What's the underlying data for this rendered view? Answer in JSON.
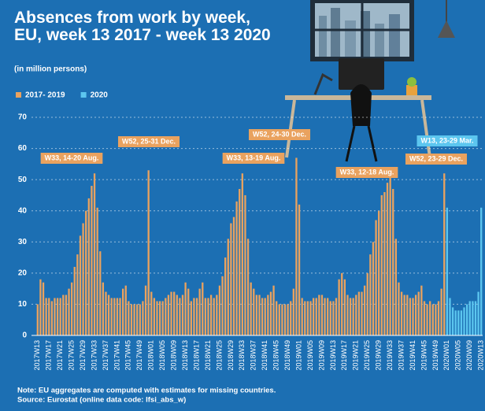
{
  "chart_data": {
    "type": "bar",
    "title": "Absences from work by week, EU, week 13 2017 - week 13 2020",
    "subtitle": "(in million persons)",
    "categories": [
      "2017W13",
      null,
      null,
      null,
      "2017W17",
      null,
      null,
      null,
      "2017W21",
      null,
      null,
      null,
      "2017W25",
      null,
      null,
      null,
      "2017W29",
      null,
      null,
      null,
      "2017W33",
      null,
      null,
      null,
      "2017W37",
      null,
      null,
      null,
      "2017W41",
      null,
      null,
      null,
      "2017W45",
      null,
      null,
      null,
      "2017W49",
      null,
      null,
      null,
      "2018W01",
      null,
      null,
      null,
      "2018W05",
      null,
      null,
      null,
      "2018W09",
      null,
      null,
      null,
      "2018W13",
      null,
      null,
      null,
      "2018W17",
      null,
      null,
      null,
      "2018W21",
      null,
      null,
      null,
      "2018W25",
      null,
      null,
      null,
      "2018W29",
      null,
      null,
      null,
      "2018W33",
      null,
      null,
      null,
      "2018W37",
      null,
      null,
      null,
      "2018W41",
      null,
      null,
      null,
      "2018W45",
      null,
      null,
      null,
      "2018W49",
      null,
      null,
      null,
      "2019W01",
      null,
      null,
      null,
      "2019W05",
      null,
      null,
      null,
      "2019W09",
      null,
      null,
      null,
      "2019W13",
      null,
      null,
      null,
      "2019W17",
      null,
      null,
      null,
      "2019W21",
      null,
      null,
      null,
      "2019W25",
      null,
      null,
      null,
      "2019W29",
      null,
      null,
      null,
      "2019W33",
      null,
      null,
      null,
      "2019W37",
      null,
      null,
      null,
      "2019W41",
      null,
      null,
      null,
      "2019W45",
      null,
      null,
      null,
      "2019W49",
      null,
      null,
      null,
      "2020W01",
      null,
      null,
      null,
      "2020W05",
      null,
      null,
      null,
      "2020W09",
      null,
      null,
      null,
      "2020W13"
    ],
    "series": [
      {
        "name": "2017- 2019",
        "color": "#e9a25f",
        "values": [
          10,
          18,
          17,
          12,
          12,
          11,
          12,
          12,
          12,
          13,
          13,
          15,
          17,
          22,
          26,
          32,
          36,
          40,
          44,
          48,
          52,
          41,
          27,
          17,
          14,
          13,
          12,
          12,
          12,
          12,
          15,
          16,
          11,
          10,
          10,
          10,
          10,
          11,
          16,
          53,
          14,
          12,
          11,
          11,
          11,
          12,
          13,
          14,
          14,
          13,
          12,
          13,
          17,
          15,
          11,
          12,
          12,
          15,
          17,
          12,
          12,
          13,
          12,
          13,
          16,
          19,
          25,
          31,
          36,
          38,
          43,
          47,
          52,
          45,
          31,
          17,
          15,
          13,
          13,
          12,
          12,
          13,
          14,
          16,
          11,
          10,
          10,
          10,
          10,
          11,
          15,
          57,
          42,
          12,
          11,
          11,
          11,
          12,
          12,
          13,
          13,
          12,
          12,
          11,
          11,
          12,
          18,
          20,
          18,
          13,
          12,
          12,
          13,
          14,
          14,
          16,
          20,
          26,
          30,
          37,
          40,
          45,
          46,
          49,
          53,
          47,
          31,
          17,
          14,
          13,
          13,
          12,
          12,
          13,
          14,
          16,
          11,
          10,
          11,
          10,
          10,
          11,
          15,
          52,
          null,
          null,
          null,
          null,
          null,
          null,
          null,
          null,
          null,
          null,
          null,
          null,
          null
        ]
      },
      {
        "name": "2020",
        "color": "#5cc6ef",
        "values": [
          null,
          null,
          null,
          null,
          null,
          null,
          null,
          null,
          null,
          null,
          null,
          null,
          null,
          null,
          null,
          null,
          null,
          null,
          null,
          null,
          null,
          null,
          null,
          null,
          null,
          null,
          null,
          null,
          null,
          null,
          null,
          null,
          null,
          null,
          null,
          null,
          null,
          null,
          null,
          null,
          null,
          null,
          null,
          null,
          null,
          null,
          null,
          null,
          null,
          null,
          null,
          null,
          null,
          null,
          null,
          null,
          null,
          null,
          null,
          null,
          null,
          null,
          null,
          null,
          null,
          null,
          null,
          null,
          null,
          null,
          null,
          null,
          null,
          null,
          null,
          null,
          null,
          null,
          null,
          null,
          null,
          null,
          null,
          null,
          null,
          null,
          null,
          null,
          null,
          null,
          null,
          null,
          null,
          null,
          null,
          null,
          null,
          null,
          null,
          null,
          null,
          null,
          null,
          null,
          null,
          null,
          null,
          null,
          null,
          null,
          null,
          null,
          null,
          null,
          null,
          null,
          null,
          null,
          null,
          null,
          null,
          null,
          null,
          null,
          null,
          null,
          null,
          null,
          null,
          null,
          null,
          null,
          null,
          null,
          null,
          null,
          null,
          null,
          null,
          null,
          null,
          null,
          null,
          null,
          41,
          12,
          9,
          8,
          8,
          8,
          9,
          10,
          11,
          11,
          11,
          14,
          41
        ]
      }
    ],
    "annotations": [
      "W33, 14-20 Aug.",
      "W52, 25-31 Dec.",
      "W33, 13-19 Aug.",
      "W52, 24-30 Dec.",
      "W33, 12-18 Aug.",
      "W52, 23-29 Dec.",
      "W13, 23-29 Mar."
    ],
    "ylim": [
      0,
      70
    ],
    "yticks": [
      0,
      10,
      20,
      30,
      40,
      50,
      60,
      70
    ],
    "grid": true,
    "legend": "top-left",
    "notes": [
      "Note: EU aggregates are computed with estimates for missing countries.",
      "Source: Eurostat (online data code: lfsi_abs_w)"
    ]
  }
}
